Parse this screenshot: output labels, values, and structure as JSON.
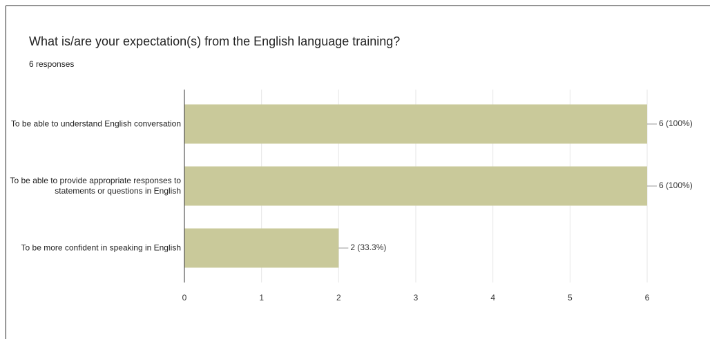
{
  "chart_data": {
    "type": "barh",
    "title": "What is/are your expectation(s) from the English language training?",
    "subtitle": "6 responses",
    "categories": [
      "To be able to understand English conversation",
      "To be able to provide appropriate responses to statements or questions in English",
      "To be more confident in speaking in English"
    ],
    "values": [
      6,
      6,
      2
    ],
    "value_labels": [
      "6 (100%)",
      "6 (100%)",
      "2 (33.3%)"
    ],
    "color": "#c9c99a",
    "xlim": [
      0,
      6
    ],
    "xticks": [
      0,
      1,
      2,
      3,
      4,
      5,
      6
    ],
    "grid": true
  }
}
